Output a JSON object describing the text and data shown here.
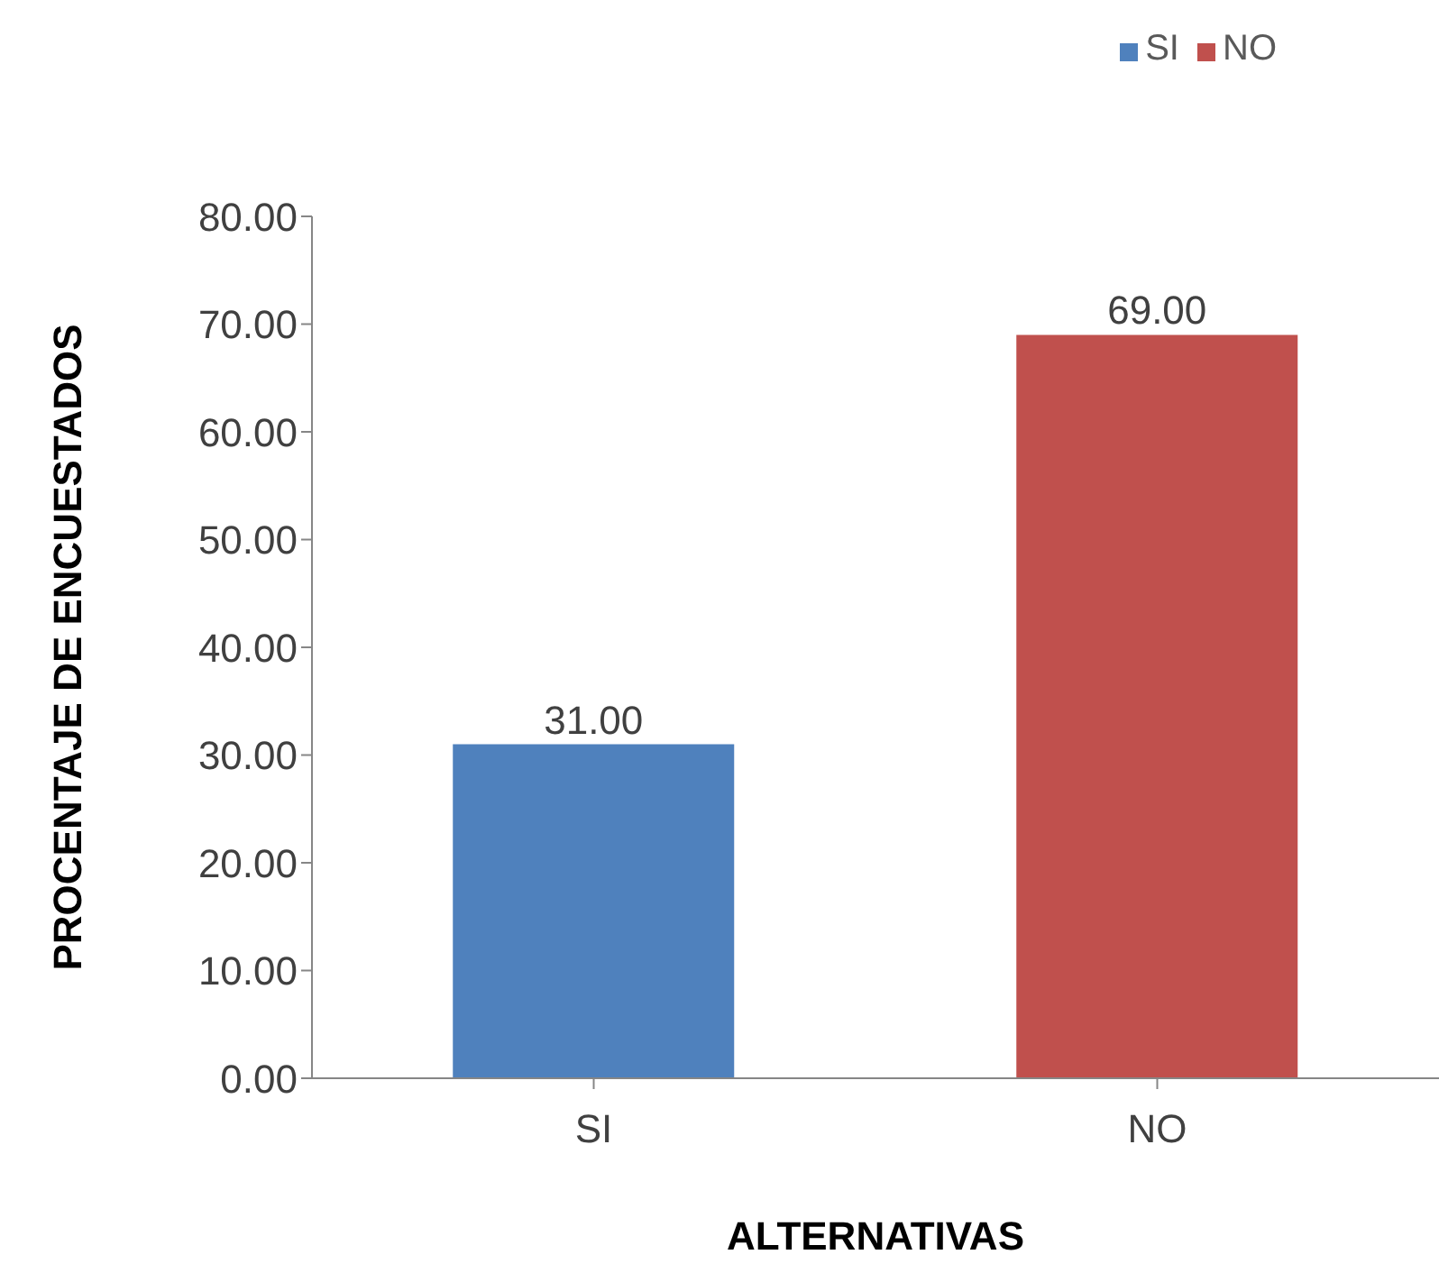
{
  "chart_data": {
    "type": "bar",
    "xlabel": "ALTERNATIVAS",
    "ylabel": "PROCENTAJE DE ENCUESTADOS",
    "categories": [
      "SI",
      "NO"
    ],
    "series": [
      {
        "name": "SI",
        "color": "#4f81bd",
        "values": [
          31,
          null
        ],
        "value_labels": [
          "31.00",
          null
        ]
      },
      {
        "name": "NO",
        "color": "#c0504d",
        "values": [
          null,
          69
        ],
        "value_labels": [
          null,
          "69.00"
        ]
      }
    ],
    "stacked": true,
    "ylim": [
      0,
      80
    ],
    "yticks": [
      {
        "value": 0,
        "label": "0.00"
      },
      {
        "value": 10,
        "label": "10.00"
      },
      {
        "value": 20,
        "label": "20.00"
      },
      {
        "value": 30,
        "label": "30.00"
      },
      {
        "value": 40,
        "label": "40.00"
      },
      {
        "value": 50,
        "label": "50.00"
      },
      {
        "value": 60,
        "label": "60.00"
      },
      {
        "value": 70,
        "label": "70.00"
      },
      {
        "value": 80,
        "label": "80.00"
      }
    ],
    "grid": false,
    "legend": "top right"
  }
}
